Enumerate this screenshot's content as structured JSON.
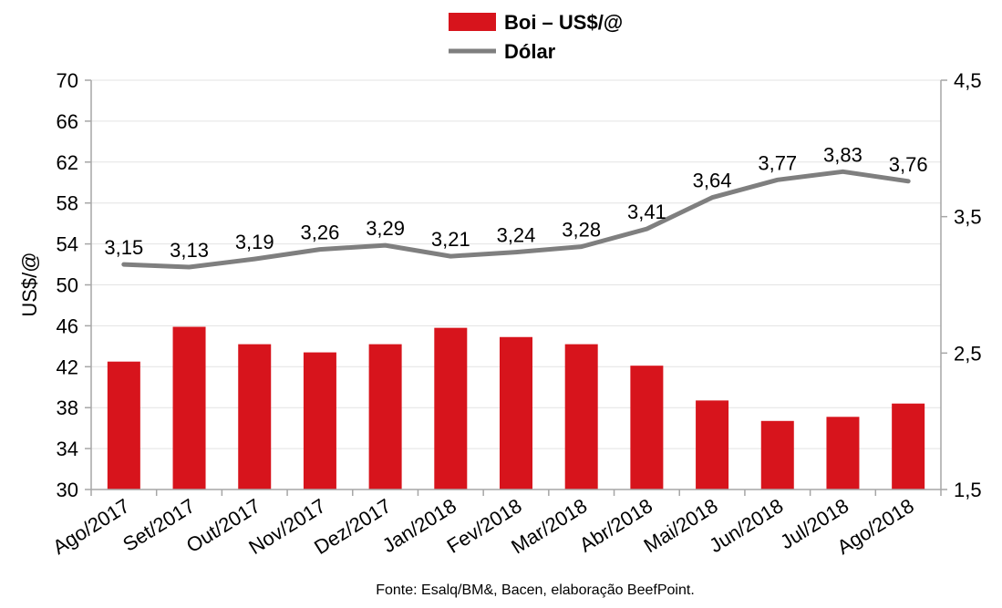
{
  "chart_data": {
    "type": "bar",
    "categories": [
      "Ago/2017",
      "Set/2017",
      "Out/2017",
      "Nov/2017",
      "Dez/2017",
      "Jan/2018",
      "Fev/2018",
      "Mar/2018",
      "Abr/2018",
      "Mai/2018",
      "Jun/2018",
      "Jul/2018",
      "Ago/2018"
    ],
    "series": [
      {
        "name": "Boi – US$/@",
        "type": "bar",
        "axis": "left",
        "color": "#d7141c",
        "values": [
          42.5,
          45.9,
          44.2,
          43.4,
          44.2,
          45.8,
          44.9,
          44.2,
          42.1,
          38.7,
          36.7,
          37.1,
          38.4
        ]
      },
      {
        "name": "Dólar",
        "type": "line",
        "axis": "right",
        "color": "#7f7f7f",
        "values": [
          3.15,
          3.13,
          3.19,
          3.26,
          3.29,
          3.21,
          3.24,
          3.28,
          3.41,
          3.64,
          3.77,
          3.83,
          3.76
        ],
        "data_labels": [
          "3,15",
          "3,13",
          "3,19",
          "3,26",
          "3,29",
          "3,21",
          "3,24",
          "3,28",
          "3,41",
          "3,64",
          "3,77",
          "3,83",
          "3,76"
        ]
      }
    ],
    "ylabel": "US$/@",
    "ylim": [
      30,
      70
    ],
    "yticks": [
      "30",
      "34",
      "38",
      "42",
      "46",
      "50",
      "54",
      "58",
      "62",
      "66",
      "70"
    ],
    "y2lim": [
      1.5,
      4.5
    ],
    "y2ticks": [
      "1,5",
      "2,5",
      "3,5",
      "4,5"
    ],
    "grid": true,
    "legend_position": "top-center",
    "source_note": "Fonte: Esalq/BM&, Bacen, elaboração BeefPoint."
  }
}
